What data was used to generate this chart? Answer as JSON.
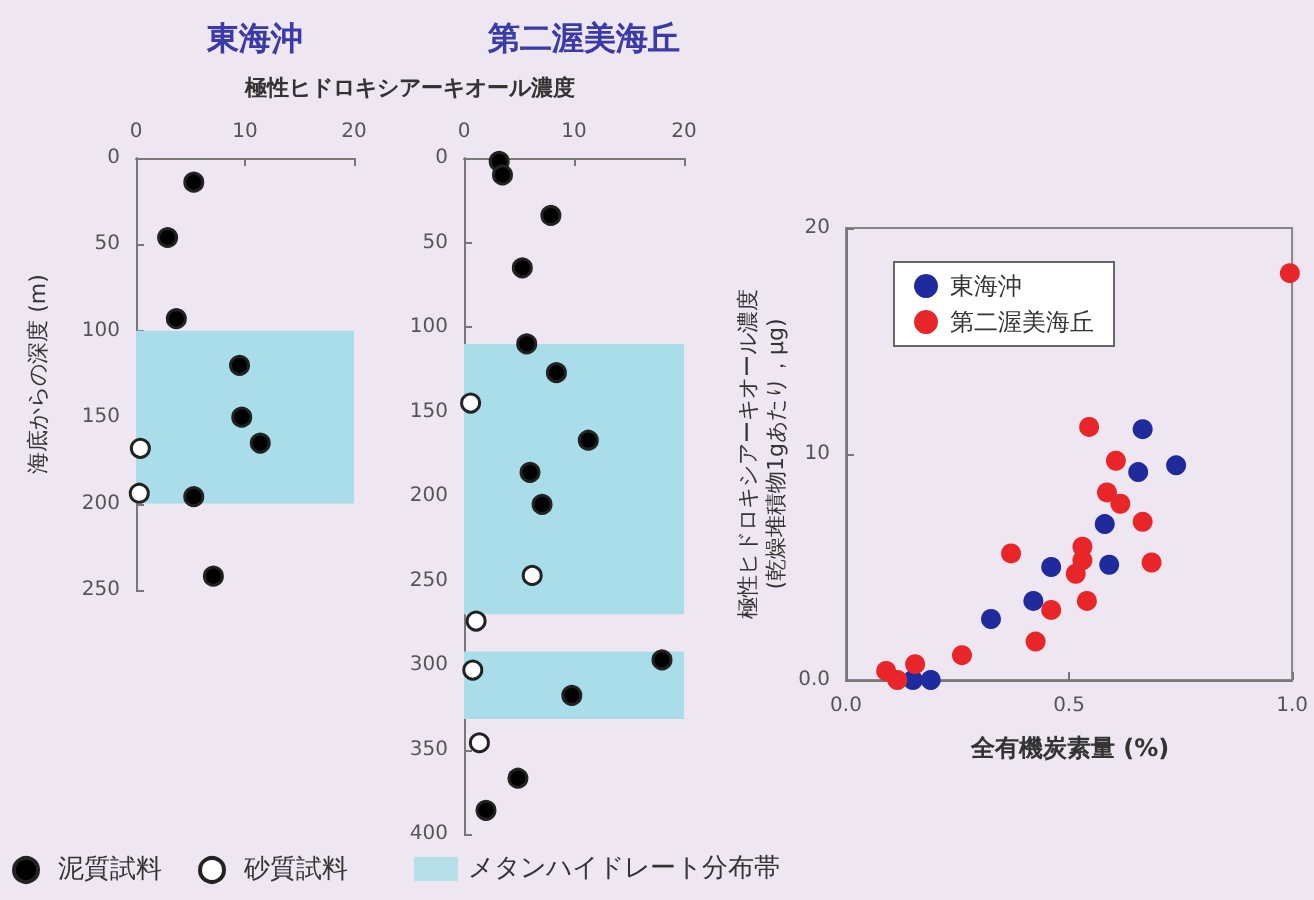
{
  "chart_data": [
    {
      "type": "scatter",
      "title": "東海沖",
      "xlabel": "極性ヒドロキシアーキオール濃度",
      "ylabel": "海底からの深度 (m)",
      "xlim": [
        0,
        20
      ],
      "xticks": [
        0,
        10,
        20
      ],
      "ylim": [
        250,
        0
      ],
      "yticks": [
        0,
        50,
        100,
        150,
        200,
        250
      ],
      "legend": "bottom left",
      "marker": "circle",
      "series": [
        {
          "name": "泥質試料",
          "color": "#000000",
          "x": [
            5.3,
            2.9,
            3.7,
            9.5,
            9.7,
            11.4,
            5.3,
            7.1
          ],
          "values": [
            14,
            46,
            93,
            120,
            150,
            165,
            196,
            242
          ]
        },
        {
          "name": "砂質試料",
          "color": "#ffffff",
          "x": [
            0.4,
            0.3
          ],
          "values": [
            168,
            194
          ]
        }
      ],
      "bands": [
        {
          "axis": "y",
          "from": 100,
          "to": 200,
          "color": "#a8dde9"
        }
      ]
    },
    {
      "type": "scatter",
      "title": "第二渥美海丘",
      "xlim": [
        0,
        20
      ],
      "xticks": [
        0,
        10,
        20
      ],
      "ylim": [
        400,
        0
      ],
      "yticks": [
        0,
        50,
        100,
        150,
        200,
        250,
        300,
        350,
        400
      ],
      "legend": "bottom",
      "marker": "circle",
      "series": [
        {
          "color": "#000000",
          "x": [
            3.2,
            3.5,
            7.9,
            5.3,
            5.7,
            8.4,
            11.3,
            6.0,
            7.1,
            18.0,
            9.8,
            4.9,
            2.0
          ],
          "values": [
            2,
            10,
            34,
            65,
            110,
            127,
            167,
            186,
            205,
            297,
            318,
            367,
            386
          ]
        },
        {
          "color": "#ffffff",
          "x": [
            0.6,
            6.2,
            1.1,
            0.8,
            1.4
          ],
          "values": [
            145,
            247,
            274,
            303,
            346
          ]
        }
      ],
      "bands": [
        {
          "axis": "y",
          "from": 110,
          "to": 270,
          "color": "#a8dde9",
          "label": "メタンハイドレート分布帯"
        },
        {
          "axis": "y",
          "from": 292,
          "to": 332,
          "color": "#a8dde9"
        }
      ]
    },
    {
      "type": "scatter",
      "xlabel": "全有機炭素量 (%)",
      "ylabel": "極性ヒドロキシアーキオール濃度\n(乾燥堆積物1gあたり，μg)",
      "xlim": [
        0,
        1
      ],
      "xticks": [
        {
          "value": 0,
          "label": "0.0"
        },
        {
          "value": 0.5,
          "label": "0.5"
        },
        {
          "value": 1,
          "label": "1.0"
        }
      ],
      "ylim": [
        0,
        20
      ],
      "yticks": [
        {
          "value": 0,
          "label": "0.0"
        },
        10,
        20
      ],
      "legend": "top left",
      "marker": "circle",
      "series": [
        {
          "name": "東海沖",
          "color": "#1f2a9c",
          "x": [
            0.665,
            0.74,
            0.655,
            0.58,
            0.59,
            0.46,
            0.42,
            0.325,
            0.15,
            0.19
          ],
          "values": [
            11.1,
            9.5,
            9.2,
            6.9,
            5.1,
            5.0,
            3.5,
            2.7,
            0,
            0
          ]
        },
        {
          "name": "第二渥美海丘",
          "color": "#e8262a",
          "x": [
            0.995,
            0.545,
            0.605,
            0.585,
            0.615,
            0.665,
            0.53,
            0.53,
            0.515,
            0.685,
            0.37,
            0.54,
            0.46,
            0.425,
            0.26,
            0.155,
            0.09,
            0.115
          ],
          "values": [
            18.0,
            11.2,
            9.7,
            8.3,
            7.8,
            7.0,
            5.9,
            5.3,
            4.7,
            5.2,
            5.6,
            3.5,
            3.1,
            1.7,
            1.1,
            0.7,
            0.4,
            0
          ]
        }
      ]
    }
  ]
}
